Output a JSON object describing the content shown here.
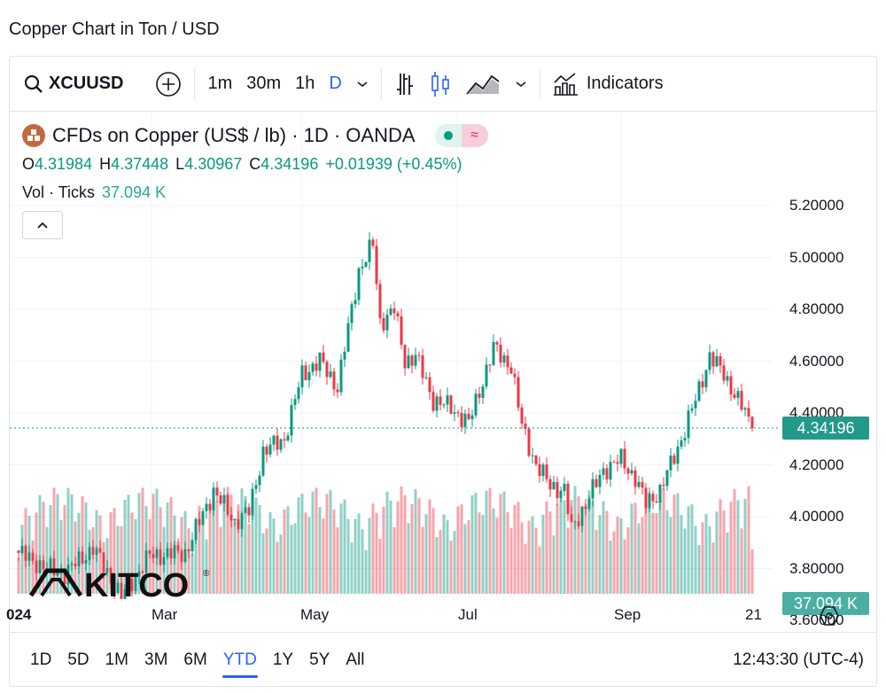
{
  "page_title": "Copper Chart in Ton / USD",
  "toolbar": {
    "symbol": "XCUUSD",
    "intervals": [
      "1m",
      "30m",
      "1h",
      "D"
    ],
    "active_interval": "D",
    "indicators_label": "Indicators"
  },
  "legend": {
    "title": "CFDs on Copper (US$ / lb) · 1D · OANDA",
    "o_label": "O",
    "o": "4.31984",
    "h_label": "H",
    "h": "4.37448",
    "l_label": "L",
    "l": "4.30967",
    "c_label": "C",
    "c": "4.34196",
    "change": "+0.01939 (+0.45%)",
    "vol_label": "Vol · Ticks",
    "vol": "37.094 K"
  },
  "logo_text": "KITCO",
  "price_axis": [
    "5.20000",
    "5.00000",
    "4.80000",
    "4.60000",
    "4.40000",
    "4.20000",
    "4.00000",
    "3.80000",
    "3.60000"
  ],
  "last_price_badge": "4.34196",
  "volume_badge": "37.094 K",
  "time_axis": [
    "024",
    "Mar",
    "May",
    "Jul",
    "Sep",
    "21"
  ],
  "ranges": [
    "1D",
    "5D",
    "1M",
    "3M",
    "6M",
    "YTD",
    "1Y",
    "5Y",
    "All"
  ],
  "active_range": "YTD",
  "clock": "12:43:30 (UTC-4)",
  "colors": {
    "up": "#089981",
    "down": "#f23645",
    "accent": "#2962ff"
  },
  "chart_data": {
    "type": "candlestick",
    "price_range": [
      3.52,
      5.26
    ],
    "last_close": 4.34196,
    "keypoints": [
      [
        0,
        3.86
      ],
      [
        8,
        3.8
      ],
      [
        13,
        3.78
      ],
      [
        21,
        3.88
      ],
      [
        29,
        3.69
      ],
      [
        37,
        3.85
      ],
      [
        47,
        3.86
      ],
      [
        55,
        4.1
      ],
      [
        61,
        3.98
      ],
      [
        65,
        4.02
      ],
      [
        69,
        4.25
      ],
      [
        75,
        4.3
      ],
      [
        80,
        4.55
      ],
      [
        85,
        4.6
      ],
      [
        90,
        4.5
      ],
      [
        96,
        4.95
      ],
      [
        100,
        5.05
      ],
      [
        102,
        4.75
      ],
      [
        106,
        4.8
      ],
      [
        109,
        4.6
      ],
      [
        112,
        4.62
      ],
      [
        117,
        4.45
      ],
      [
        122,
        4.42
      ],
      [
        127,
        4.36
      ],
      [
        134,
        4.65
      ],
      [
        139,
        4.58
      ],
      [
        142,
        4.35
      ],
      [
        146,
        4.2
      ],
      [
        150,
        4.12
      ],
      [
        154,
        4.1
      ],
      [
        156,
        3.95
      ],
      [
        160,
        4.05
      ],
      [
        165,
        4.18
      ],
      [
        170,
        4.22
      ],
      [
        174,
        4.15
      ],
      [
        177,
        4.05
      ],
      [
        181,
        4.1
      ],
      [
        187,
        4.3
      ],
      [
        191,
        4.45
      ],
      [
        195,
        4.62
      ],
      [
        199,
        4.55
      ],
      [
        201,
        4.5
      ],
      [
        205,
        4.4
      ],
      [
        207,
        4.34
      ]
    ]
  }
}
